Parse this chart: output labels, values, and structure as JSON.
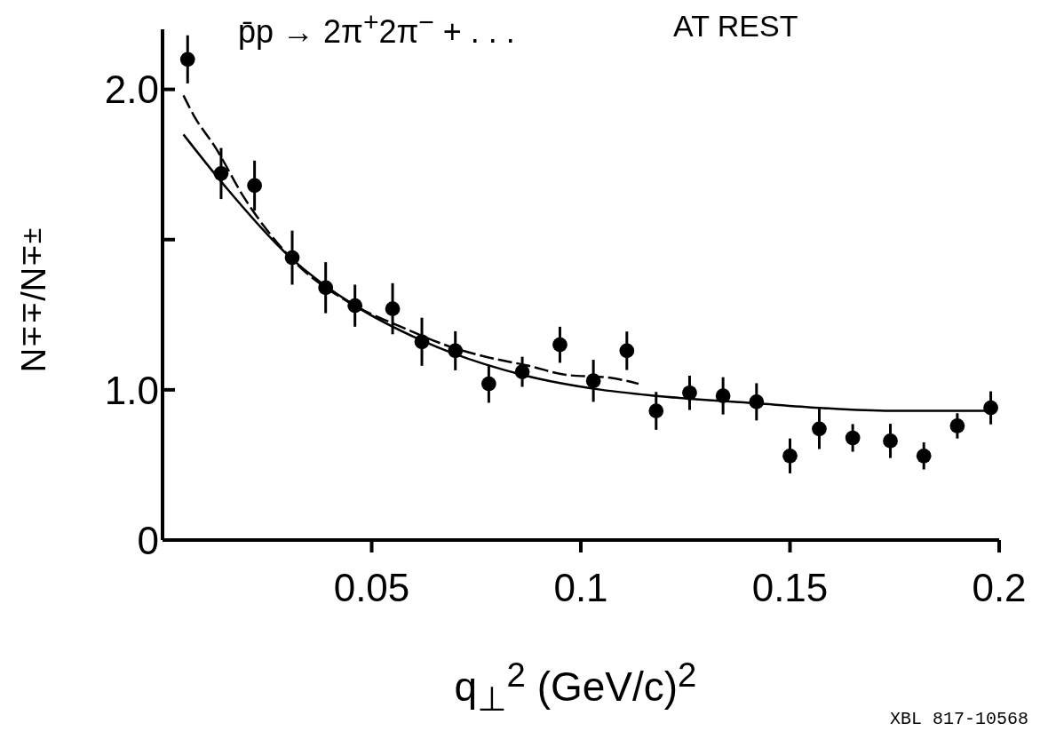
{
  "chart_data": {
    "type": "scatter",
    "title": "p̄p → 2π$^{+}$2π$^{−}$ + . . .",
    "xlabel": "q$_{⊥}$$^{2}$ (GeV/c)$^{2}$",
    "ylabel": "N$^{∓∓}$/N$^{∓±}$",
    "annotations": [
      "AT REST",
      "XBL 817-10568"
    ],
    "xlim": [
      0,
      0.2
    ],
    "xticks": [
      0.05,
      0.1,
      0.15,
      0.2
    ],
    "ylim": [
      0.5,
      2.2
    ],
    "yticks": [
      {
        "value": 0.5,
        "label": "0"
      },
      {
        "value": 1,
        "label": "1.0"
      },
      {
        "value": 1.5,
        "label": null
      },
      {
        "value": 2,
        "label": "2.0"
      }
    ],
    "grid": false,
    "legend": false,
    "series": [
      {
        "color": "#000000",
        "marker": "circle",
        "x": [
          0.006,
          0.014,
          0.022,
          0.031,
          0.039,
          0.046,
          0.055,
          0.062,
          0.07,
          0.078,
          0.086,
          0.095,
          0.103,
          0.111,
          0.118,
          0.126,
          0.134,
          0.142,
          0.15,
          0.157,
          0.165,
          0.174,
          0.182,
          0.19,
          0.198
        ],
        "values": [
          2.1,
          1.72,
          1.68,
          1.44,
          1.34,
          1.28,
          1.27,
          1.16,
          1.13,
          1.02,
          1.06,
          1.15,
          1.03,
          1.13,
          0.93,
          0.99,
          0.98,
          0.96,
          0.78,
          0.87,
          0.84,
          0.83,
          0.78,
          0.88,
          0.94
        ],
        "errors": [
          0.08,
          0.085,
          0.083,
          0.09,
          0.085,
          0.07,
          0.085,
          0.08,
          0.065,
          0.063,
          0.05,
          0.06,
          0.07,
          0.064,
          0.063,
          0.057,
          0.062,
          0.062,
          0.058,
          0.067,
          0.046,
          0.057,
          0.045,
          0.042,
          0.055
        ]
      },
      {
        "type": "line",
        "color": "#000000",
        "marker": "none",
        "line_style": "solid",
        "x": [
          0.005,
          0.0136,
          0.0306,
          0.046,
          0.062,
          0.086,
          0.105,
          0.118,
          0.142,
          0.157,
          0.174,
          0.198
        ],
        "values": [
          1.85,
          1.7,
          1.44,
          1.28,
          1.164,
          1.05,
          1.0,
          0.98,
          0.955,
          0.94,
          0.93,
          0.93
        ]
      },
      {
        "type": "line",
        "color": "#000000",
        "marker": "none",
        "line_style": "dashed",
        "x": [
          0.005,
          0.0076,
          0.0125,
          0.0195,
          0.0306,
          0.046,
          0.057,
          0.0695,
          0.0773,
          0.0875,
          0.0964,
          0.107,
          0.1138
        ],
        "values": [
          1.98,
          1.91,
          1.81,
          1.64,
          1.44,
          1.28,
          1.21,
          1.14,
          1.11,
          1.08,
          1.05,
          1.04,
          1.02
        ]
      }
    ]
  }
}
